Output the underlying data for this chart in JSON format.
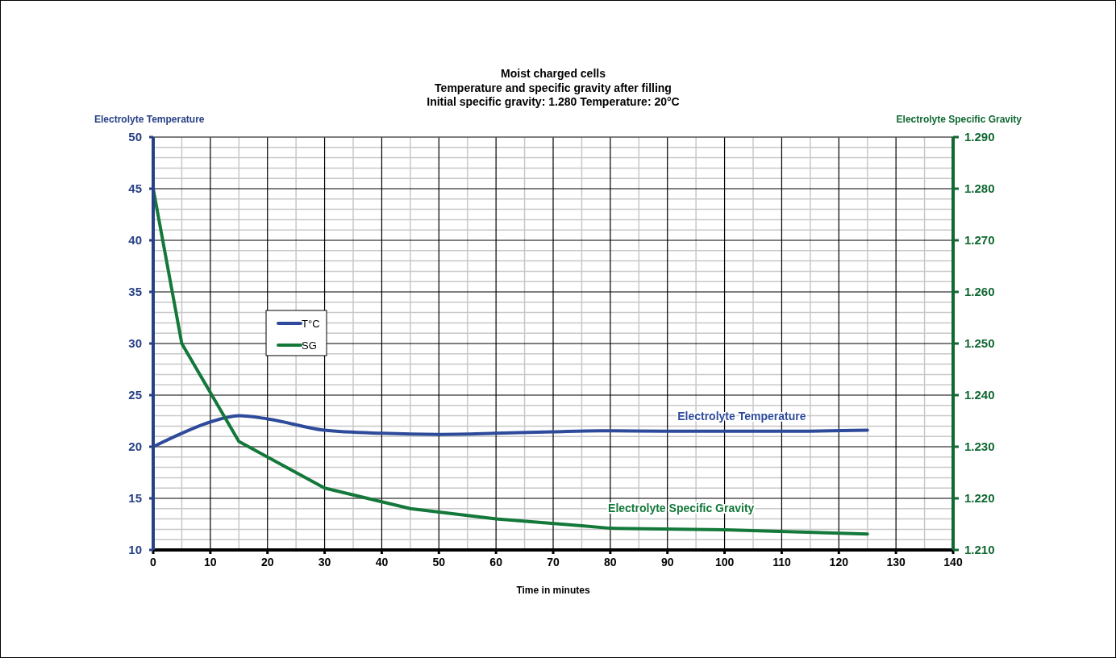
{
  "chart_data": {
    "type": "line",
    "title": "Moist charged cells",
    "subtitle": "Temperature and specific gravity after filling\nInitial specific gravity: 1.280 Temperature: 20°C",
    "xlabel": "Time in minutes",
    "ylabel": "Electrolyte Temperature",
    "y2label": "Electrolyte Specific Gravity",
    "xlim": [
      0,
      140
    ],
    "xticks": [
      0,
      10,
      20,
      30,
      40,
      50,
      60,
      70,
      80,
      90,
      100,
      110,
      120,
      130,
      140
    ],
    "ylim": [
      10,
      50
    ],
    "yticks": [
      10,
      15,
      20,
      25,
      30,
      35,
      40,
      45,
      50
    ],
    "y2lim": [
      1.21,
      1.29
    ],
    "y2ticks": [
      {
        "value": 1.21,
        "label": "1.210"
      },
      {
        "value": 1.22,
        "label": "1.220"
      },
      {
        "value": 1.23,
        "label": "1.230"
      },
      {
        "value": 1.24,
        "label": "1.240"
      },
      {
        "value": 1.25,
        "label": "1.250"
      },
      {
        "value": 1.26,
        "label": "1.260"
      },
      {
        "value": 1.27,
        "label": "1.270"
      },
      {
        "value": 1.28,
        "label": "1.280"
      },
      {
        "value": 1.29,
        "label": "1.290"
      }
    ],
    "grid": true,
    "legend": "left",
    "marker": "none",
    "line_style": "solid",
    "series": [
      {
        "name": "T°C",
        "color": "#2e4b9b",
        "x": [
          0,
          5,
          10,
          15,
          20,
          30,
          40,
          50,
          60,
          70,
          78,
          90,
          100,
          110,
          125
        ],
        "values": [
          20,
          21.3,
          22.4,
          23,
          22.7,
          21.6,
          21.3,
          21.2,
          21.3,
          21.45,
          21.55,
          21.5,
          21.5,
          21.5,
          21.6
        ]
      },
      {
        "name": "SG",
        "color": "#13783a",
        "axis": "y2",
        "x": [
          0,
          5,
          15,
          30,
          45,
          60,
          75,
          80,
          100,
          125
        ],
        "values": [
          1.28,
          1.25,
          1.231,
          1.222,
          1.218,
          1.216,
          1.2147,
          1.2142,
          1.2139,
          1.2131
        ]
      }
    ],
    "annotations": [
      "Electrolyte Temperature",
      "Electrolyte Specific Gravity"
    ]
  }
}
